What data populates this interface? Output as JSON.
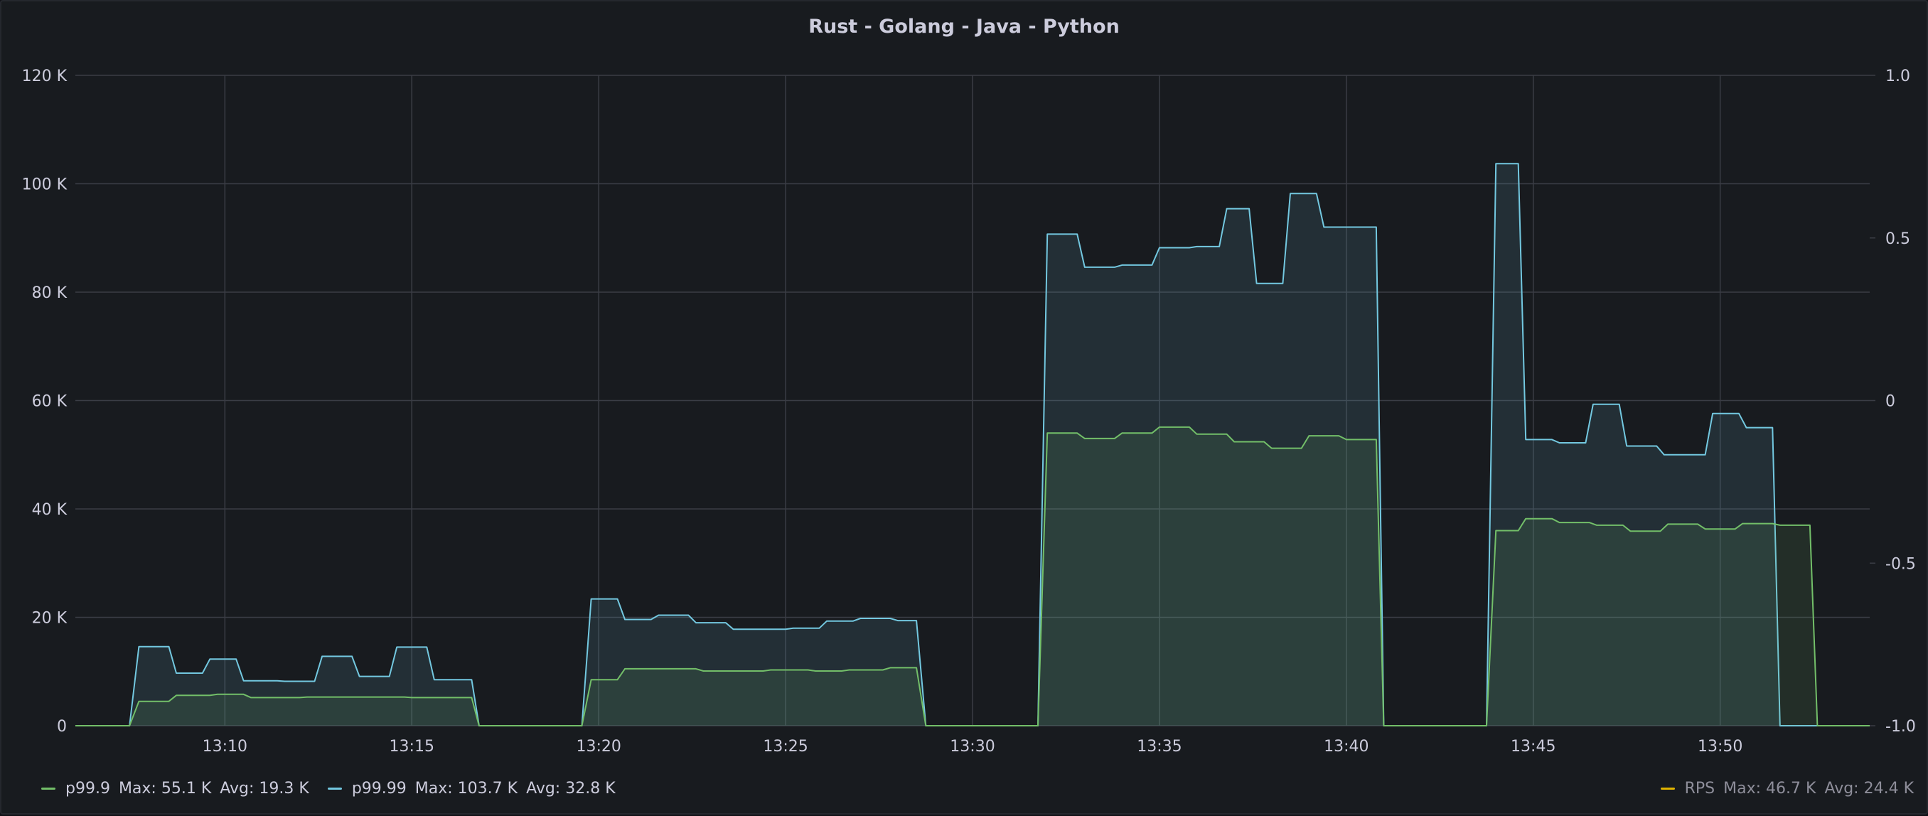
{
  "panel": {
    "title": "Rust - Golang - Java - Python"
  },
  "colors": {
    "background": "#181b1f",
    "grid": "#3a3d45",
    "axis_text": "#ccccdc",
    "p999": "#73bf69",
    "p9999": "#73c8e0",
    "rps": "#e0b400"
  },
  "chart_data": {
    "type": "area",
    "title": "Rust - Golang - Java - Python",
    "x_unit": "time (HH:MM)",
    "xlim": [
      "13:06",
      "13:54"
    ],
    "x_ticks": [
      "13:10",
      "13:15",
      "13:20",
      "13:25",
      "13:30",
      "13:35",
      "13:40",
      "13:45",
      "13:50"
    ],
    "y_left": {
      "ylim": [
        0,
        120000
      ],
      "ticks": [
        "0",
        "20 K",
        "40 K",
        "60 K",
        "80 K",
        "100 K",
        "120 K"
      ]
    },
    "y_right": {
      "ylim": [
        -1.0,
        1.0
      ],
      "ticks": [
        "-1.0",
        "-0.5",
        "0",
        "0.5",
        "1.0"
      ]
    },
    "grid": true,
    "legend_placement": "bottom",
    "series": [
      {
        "name": "p99.9",
        "color": "#73bf69",
        "axis": "left",
        "points": [
          [
            "13:06",
            0
          ],
          [
            "13:07.45",
            0
          ],
          [
            "13:07.7",
            4500
          ],
          [
            "13:08.5",
            4500
          ],
          [
            "13:08.7",
            5600
          ],
          [
            "13:09.6",
            5600
          ],
          [
            "13:09.8",
            5800
          ],
          [
            "13:10.5",
            5800
          ],
          [
            "13:10.7",
            5200
          ],
          [
            "13:12.0",
            5200
          ],
          [
            "13:12.2",
            5300
          ],
          [
            "13:14.8",
            5300
          ],
          [
            "13:15.0",
            5200
          ],
          [
            "13:16.6",
            5200
          ],
          [
            "13:16.8",
            0
          ],
          [
            "13:19.55",
            0
          ],
          [
            "13:19.8",
            8500
          ],
          [
            "13:20.5",
            8500
          ],
          [
            "13:20.7",
            10500
          ],
          [
            "13:22.6",
            10500
          ],
          [
            "13:22.8",
            10100
          ],
          [
            "13:24.4",
            10100
          ],
          [
            "13:24.6",
            10300
          ],
          [
            "13:25.6",
            10300
          ],
          [
            "13:25.8",
            10100
          ],
          [
            "13:26.5",
            10100
          ],
          [
            "13:26.7",
            10300
          ],
          [
            "13:27.6",
            10300
          ],
          [
            "13:27.8",
            10700
          ],
          [
            "13:28.5",
            10700
          ],
          [
            "13:28.75",
            0
          ],
          [
            "13:31.75",
            0
          ],
          [
            "13:32.0",
            54000
          ],
          [
            "13:32.8",
            54000
          ],
          [
            "13:33.0",
            53000
          ],
          [
            "13:33.8",
            53000
          ],
          [
            "13:34.0",
            54000
          ],
          [
            "13:34.8",
            54000
          ],
          [
            "13:35.0",
            55100
          ],
          [
            "13:35.8",
            55100
          ],
          [
            "13:36.0",
            53800
          ],
          [
            "13:36.8",
            53800
          ],
          [
            "13:37.0",
            52400
          ],
          [
            "13:37.8",
            52400
          ],
          [
            "13:38.0",
            51200
          ],
          [
            "13:38.8",
            51200
          ],
          [
            "13:39.0",
            53500
          ],
          [
            "13:39.8",
            53500
          ],
          [
            "13:40.0",
            52800
          ],
          [
            "13:40.8",
            52800
          ],
          [
            "13:41.0",
            0
          ],
          [
            "13:43.75",
            0
          ],
          [
            "13:44.0",
            36000
          ],
          [
            "13:44.6",
            36000
          ],
          [
            "13:44.8",
            38200
          ],
          [
            "13:45.5",
            38200
          ],
          [
            "13:45.7",
            37500
          ],
          [
            "13:46.5",
            37500
          ],
          [
            "13:46.7",
            37000
          ],
          [
            "13:47.4",
            37000
          ],
          [
            "13:47.6",
            35900
          ],
          [
            "13:48.4",
            35900
          ],
          [
            "13:48.6",
            37200
          ],
          [
            "13:49.4",
            37200
          ],
          [
            "13:49.6",
            36300
          ],
          [
            "13:50.4",
            36300
          ],
          [
            "13:50.6",
            37300
          ],
          [
            "13:51.4",
            37300
          ],
          [
            "13:51.6",
            37000
          ],
          [
            "13:52.4",
            37000
          ],
          [
            "13:52.6",
            0
          ],
          [
            "13:54",
            0
          ]
        ]
      },
      {
        "name": "p99.99",
        "color": "#73c8e0",
        "axis": "left",
        "points": [
          [
            "13:06",
            0
          ],
          [
            "13:07.45",
            0
          ],
          [
            "13:07.7",
            14600
          ],
          [
            "13:08.5",
            14600
          ],
          [
            "13:08.7",
            9700
          ],
          [
            "13:09.4",
            9700
          ],
          [
            "13:09.6",
            12300
          ],
          [
            "13:10.3",
            12300
          ],
          [
            "13:10.5",
            8300
          ],
          [
            "13:11.4",
            8300
          ],
          [
            "13:11.6",
            8200
          ],
          [
            "13:12.4",
            8200
          ],
          [
            "13:12.6",
            12800
          ],
          [
            "13:13.4",
            12800
          ],
          [
            "13:13.6",
            9100
          ],
          [
            "13:14.4",
            9100
          ],
          [
            "13:14.6",
            14500
          ],
          [
            "13:15.4",
            14500
          ],
          [
            "13:15.6",
            8500
          ],
          [
            "13:16.6",
            8500
          ],
          [
            "13:16.8",
            0
          ],
          [
            "13:19.55",
            0
          ],
          [
            "13:19.8",
            23400
          ],
          [
            "13:20.5",
            23400
          ],
          [
            "13:20.7",
            19600
          ],
          [
            "13:21.4",
            19600
          ],
          [
            "13:21.6",
            20400
          ],
          [
            "13:22.4",
            20400
          ],
          [
            "13:22.6",
            19000
          ],
          [
            "13:23.4",
            19000
          ],
          [
            "13:23.6",
            17800
          ],
          [
            "13:25.0",
            17800
          ],
          [
            "13:25.2",
            18000
          ],
          [
            "13:25.9",
            18000
          ],
          [
            "13:26.1",
            19300
          ],
          [
            "13:26.8",
            19300
          ],
          [
            "13:27.0",
            19800
          ],
          [
            "13:27.8",
            19800
          ],
          [
            "13:28.0",
            19400
          ],
          [
            "13:28.5",
            19400
          ],
          [
            "13:28.75",
            0
          ],
          [
            "13:31.75",
            0
          ],
          [
            "13:32.0",
            90700
          ],
          [
            "13:32.8",
            90700
          ],
          [
            "13:33.0",
            84600
          ],
          [
            "13:33.8",
            84600
          ],
          [
            "13:34.0",
            85000
          ],
          [
            "13:34.8",
            85000
          ],
          [
            "13:35.0",
            88200
          ],
          [
            "13:35.8",
            88200
          ],
          [
            "13:36.0",
            88400
          ],
          [
            "13:36.6",
            88400
          ],
          [
            "13:36.8",
            95400
          ],
          [
            "13:37.4",
            95400
          ],
          [
            "13:37.6",
            81600
          ],
          [
            "13:38.3",
            81600
          ],
          [
            "13:38.5",
            98200
          ],
          [
            "13:39.2",
            98200
          ],
          [
            "13:39.4",
            92000
          ],
          [
            "13:40.8",
            92000
          ],
          [
            "13:41.0",
            0
          ],
          [
            "13:43.75",
            0
          ],
          [
            "13:44.0",
            103700
          ],
          [
            "13:44.6",
            103700
          ],
          [
            "13:44.8",
            52800
          ],
          [
            "13:45.5",
            52800
          ],
          [
            "13:45.7",
            52200
          ],
          [
            "13:46.4",
            52200
          ],
          [
            "13:46.6",
            59300
          ],
          [
            "13:47.3",
            59300
          ],
          [
            "13:47.5",
            51600
          ],
          [
            "13:48.3",
            51600
          ],
          [
            "13:48.5",
            50000
          ],
          [
            "13:49.6",
            50000
          ],
          [
            "13:49.8",
            57600
          ],
          [
            "13:50.5",
            57600
          ],
          [
            "13:50.7",
            55000
          ],
          [
            "13:51.4",
            55000
          ],
          [
            "13:51.6",
            0
          ],
          [
            "13:54",
            0
          ]
        ]
      }
    ]
  },
  "legend": {
    "left": [
      {
        "name": "p99.9",
        "max": "Max: 55.1 K",
        "avg": "Avg: 19.3 K",
        "color": "#73bf69"
      },
      {
        "name": "p99.99",
        "max": "Max: 103.7 K",
        "avg": "Avg: 32.8 K",
        "color": "#73c8e0"
      }
    ],
    "right": [
      {
        "name": "RPS",
        "max": "Max: 46.7 K",
        "avg": "Avg: 24.4 K",
        "color": "#e0b400"
      }
    ]
  }
}
